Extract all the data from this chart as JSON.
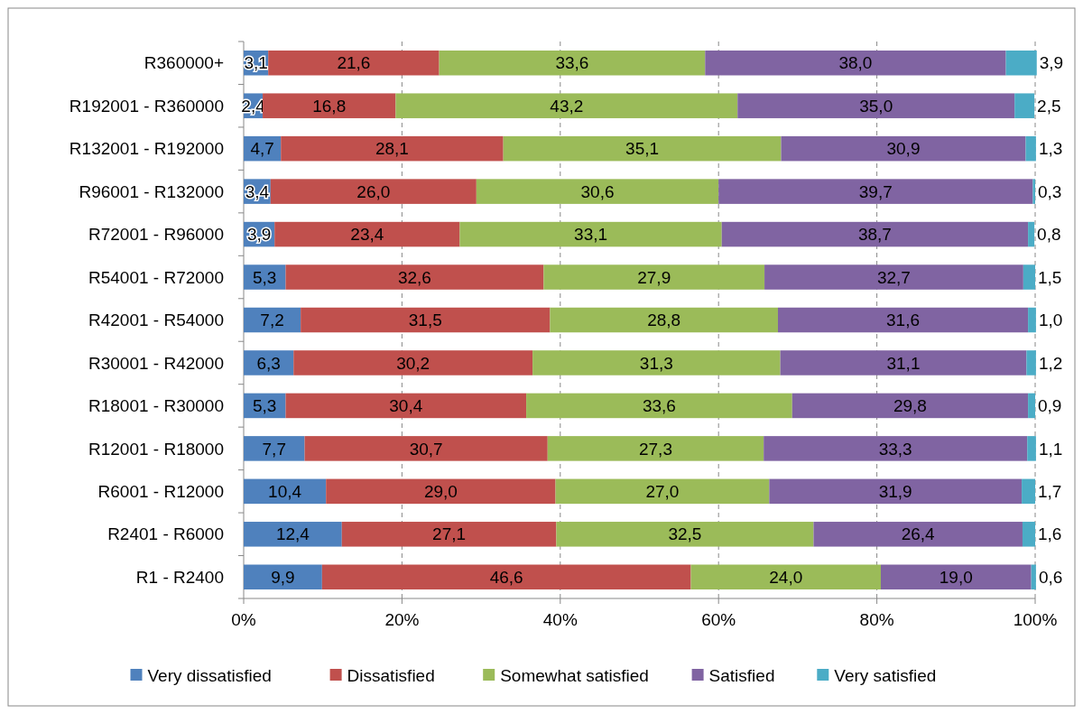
{
  "chart_data": {
    "type": "bar",
    "orientation": "horizontal",
    "stacked": true,
    "categories": [
      "R360000+",
      "R192001 - R360000",
      "R132001 - R192000",
      "R96001 - R132000",
      "R72001 - R96000",
      "R54001 - R72000",
      "R42001 - R54000",
      "R30001 - R42000",
      "R18001 - R30000",
      "R12001 - R18000",
      "R6001 - R12000",
      "R2401 - R6000",
      "R1 - R2400"
    ],
    "series": [
      {
        "name": "Very dissatisfied",
        "color": "#4f81bd",
        "values": [
          3.1,
          2.4,
          4.7,
          3.4,
          3.9,
          5.3,
          7.2,
          6.3,
          5.3,
          7.7,
          10.4,
          12.4,
          9.9
        ],
        "value_labels": [
          "3,1",
          "2,4",
          "4,7",
          "3,4",
          "3,9",
          "5,3",
          "7,2",
          "6,3",
          "5,3",
          "7,7",
          "10,4",
          "12,4",
          "9,9"
        ]
      },
      {
        "name": "Dissatisfied",
        "color": "#c0504d",
        "values": [
          21.6,
          16.8,
          28.1,
          26.0,
          23.4,
          32.6,
          31.5,
          30.2,
          30.4,
          30.7,
          29.0,
          27.1,
          46.6
        ],
        "value_labels": [
          "21,6",
          "16,8",
          "28,1",
          "26,0",
          "23,4",
          "32,6",
          "31,5",
          "30,2",
          "30,4",
          "30,7",
          "29,0",
          "27,1",
          "46,6"
        ]
      },
      {
        "name": "Somewhat satisfied",
        "color": "#9bbb59",
        "values": [
          33.6,
          43.2,
          35.1,
          30.6,
          33.1,
          27.9,
          28.8,
          31.3,
          33.6,
          27.3,
          27.0,
          32.5,
          24.0
        ],
        "value_labels": [
          "33,6",
          "43,2",
          "35,1",
          "30,6",
          "33,1",
          "27,9",
          "28,8",
          "31,3",
          "33,6",
          "27,3",
          "27,0",
          "32,5",
          "24,0"
        ]
      },
      {
        "name": "Satisfied",
        "color": "#8064a2",
        "values": [
          38.0,
          35.0,
          30.9,
          39.7,
          38.7,
          32.7,
          31.6,
          31.1,
          29.8,
          33.3,
          31.9,
          26.4,
          19.0
        ],
        "value_labels": [
          "38,0",
          "35,0",
          "30,9",
          "39,7",
          "38,7",
          "32,7",
          "31,6",
          "31,1",
          "29,8",
          "33,3",
          "31,9",
          "26,4",
          "19,0"
        ]
      },
      {
        "name": "Very satisfied",
        "color": "#4bacc6",
        "values": [
          3.9,
          2.5,
          1.3,
          0.3,
          0.8,
          1.5,
          1.0,
          1.2,
          0.9,
          1.1,
          1.7,
          1.6,
          0.6
        ],
        "value_labels": [
          "3,9",
          "2,5",
          "1,3",
          "0,3",
          "0,8",
          "1,5",
          "1,0",
          "1,2",
          "0,9",
          "1,1",
          "1,7",
          "1,6",
          "0,6"
        ]
      }
    ],
    "xlim": [
      0,
      100
    ],
    "xticks": [
      {
        "value": 0,
        "label": "0%"
      },
      {
        "value": 20,
        "label": "20%"
      },
      {
        "value": 40,
        "label": "40%"
      },
      {
        "value": 60,
        "label": "60%"
      },
      {
        "value": 80,
        "label": "80%"
      },
      {
        "value": 100,
        "label": "100%"
      }
    ],
    "grid": "x",
    "legend": "bottom"
  }
}
